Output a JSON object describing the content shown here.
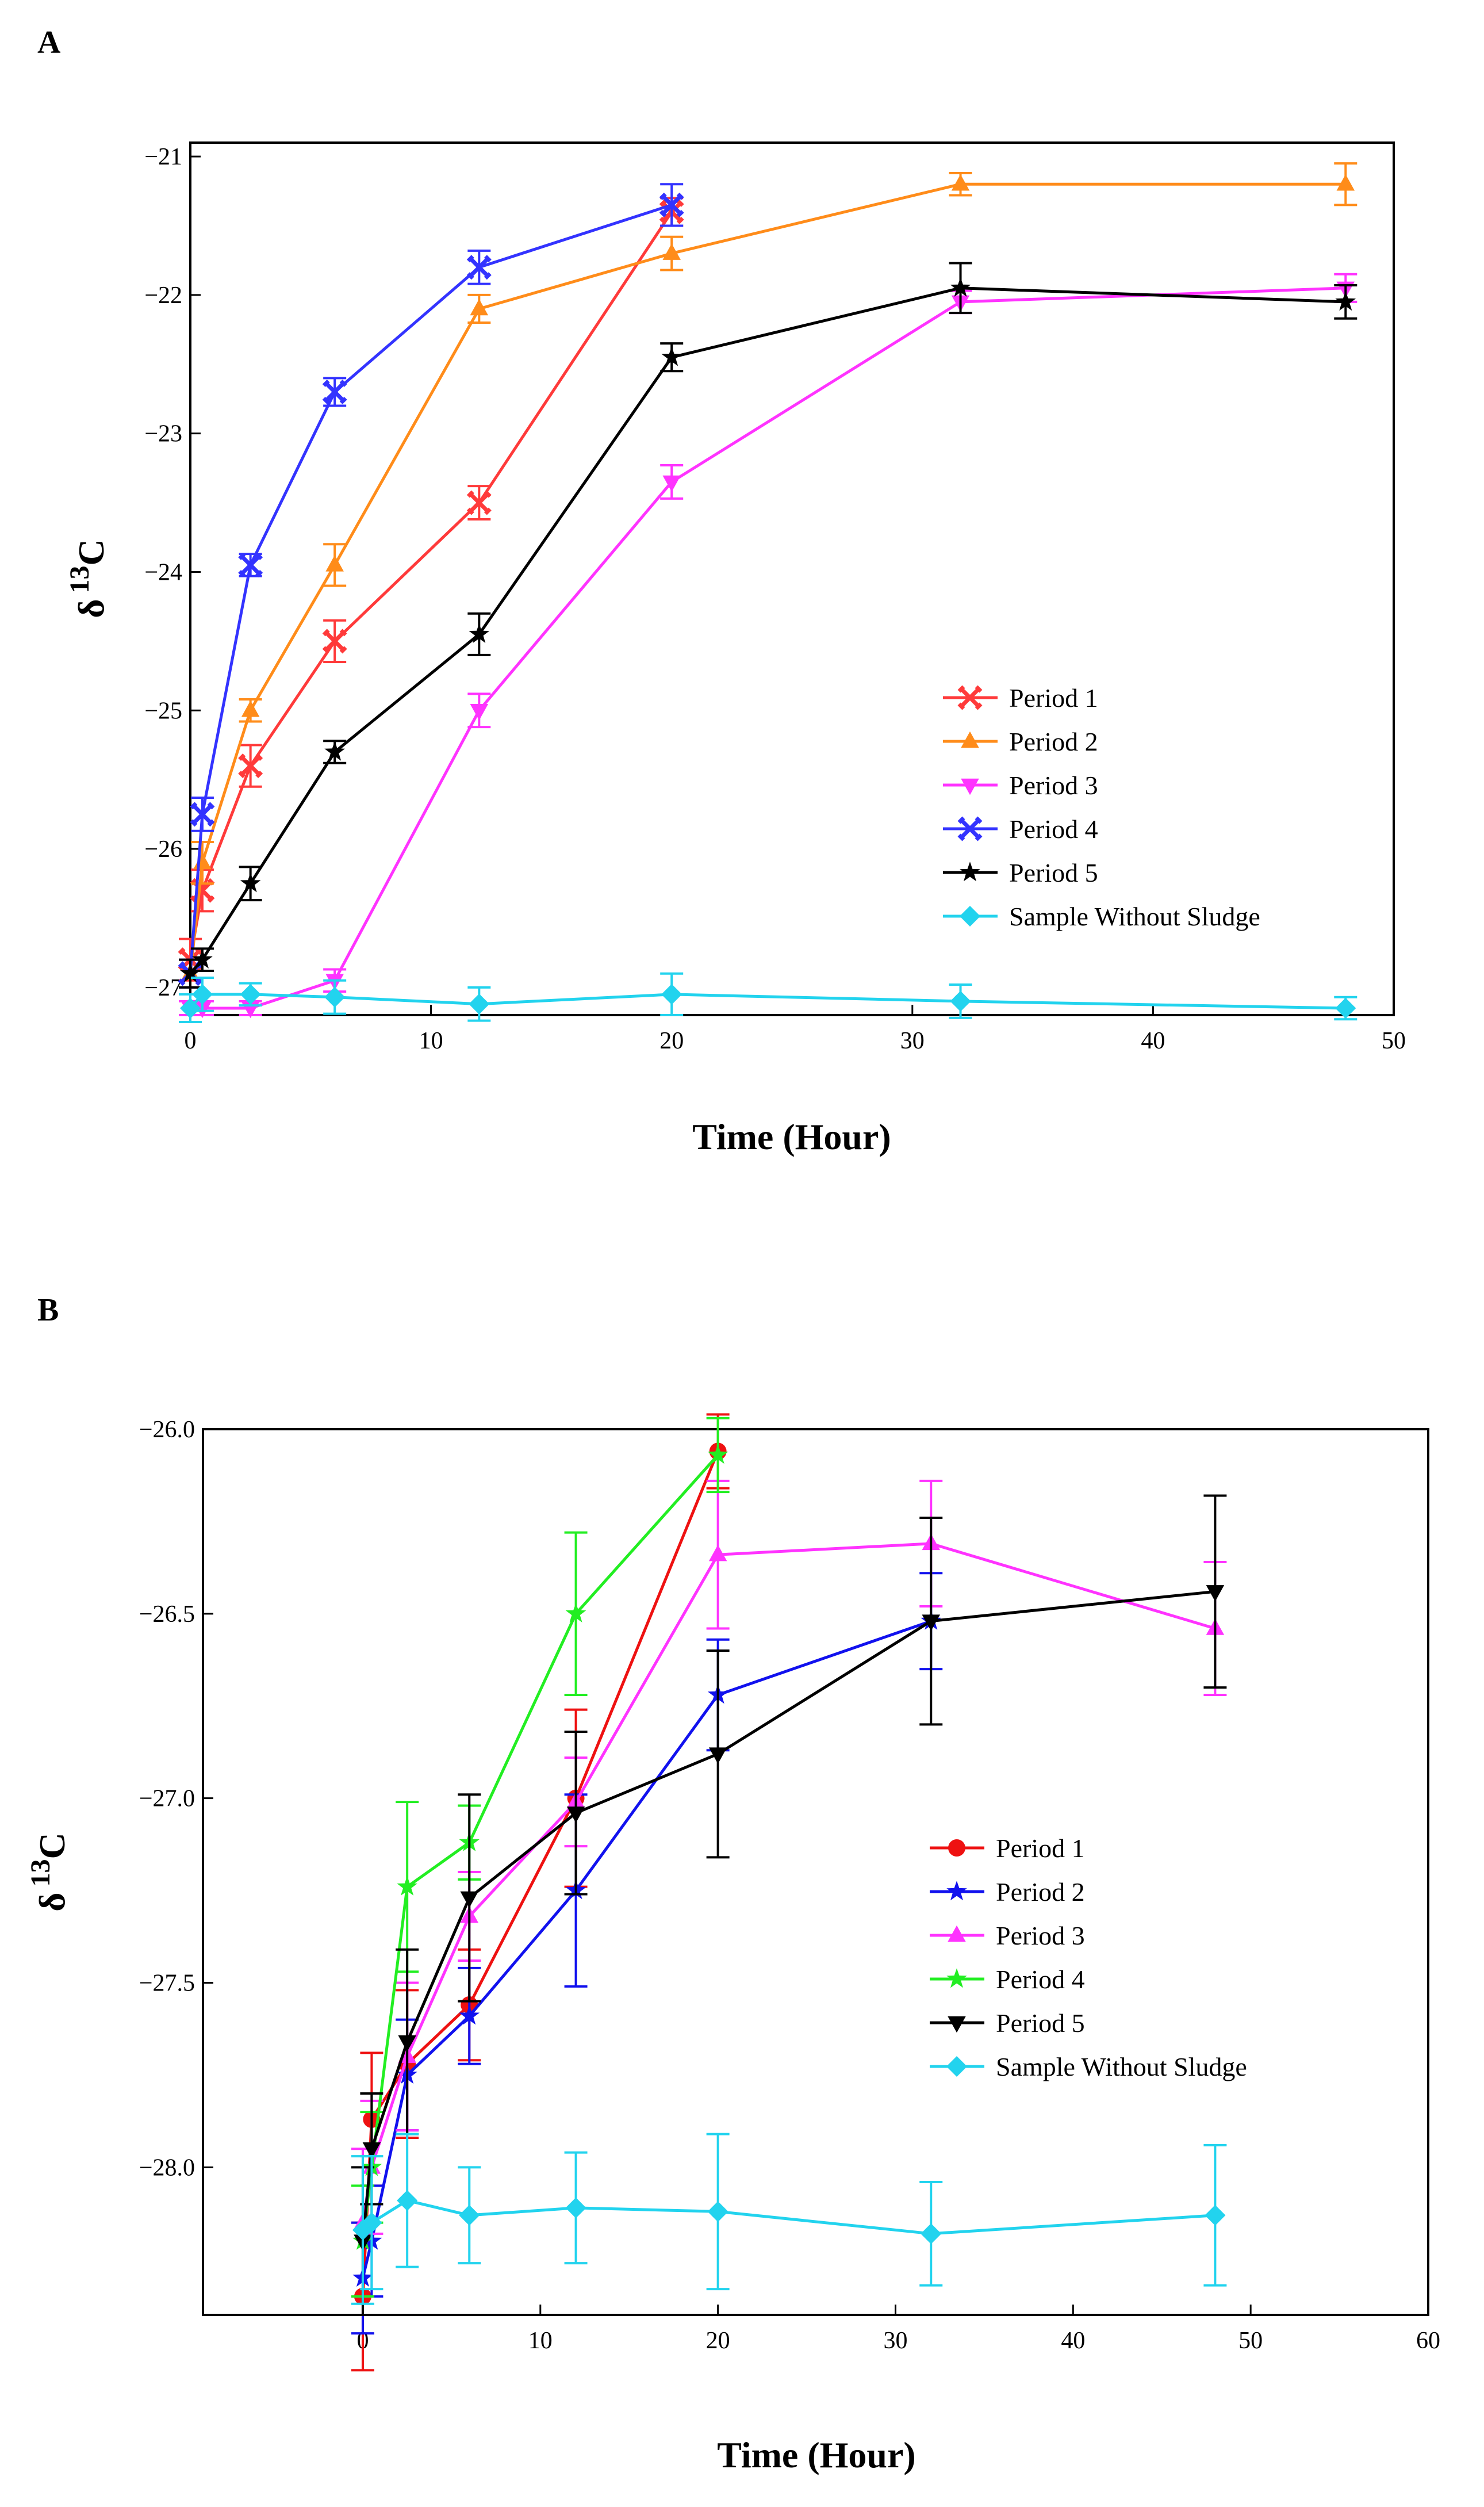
{
  "chart_data": [
    {
      "panel": "A",
      "type": "line",
      "xlabel": "Time (Hour)",
      "ylabel_main": "δ",
      "ylabel_sup": "13",
      "ylabel_sub": "C",
      "xlim": [
        0,
        50
      ],
      "ylim": [
        -27.2,
        -20.9
      ],
      "xticks": [
        0,
        10,
        20,
        30,
        40,
        50
      ],
      "yticks": [
        -27,
        -26,
        -25,
        -24,
        -23,
        -22,
        -21
      ],
      "legend_position": "lower-right",
      "series": [
        {
          "name": "Period 1",
          "color": "#ff3a3a",
          "marker": "x",
          "x": [
            0,
            0.5,
            2.5,
            6,
            12,
            20
          ],
          "y": [
            -26.8,
            -26.3,
            -25.4,
            -24.5,
            -23.5,
            -21.4
          ],
          "err": [
            0.15,
            0.15,
            0.15,
            0.15,
            0.12,
            0.1
          ]
        },
        {
          "name": "Period 2",
          "color": "#ff8c1a",
          "marker": "triangle-up",
          "x": [
            0,
            0.5,
            2.5,
            6,
            12,
            20,
            32,
            48
          ],
          "y": [
            -26.9,
            -26.1,
            -25.0,
            -23.95,
            -22.1,
            -21.7,
            -21.2,
            -21.2
          ],
          "err": [
            0.1,
            0.15,
            0.08,
            0.15,
            0.1,
            0.12,
            0.08,
            0.15
          ]
        },
        {
          "name": "Period 3",
          "color": "#ff33ff",
          "marker": "triangle-down",
          "x": [
            0,
            0.5,
            2.5,
            6,
            12,
            20,
            32,
            48
          ],
          "y": [
            -27.15,
            -27.15,
            -27.15,
            -26.95,
            -25.0,
            -23.35,
            -22.05,
            -21.95
          ],
          "err": [
            0.05,
            0.05,
            0.05,
            0.08,
            0.12,
            0.12,
            0.08,
            0.1
          ]
        },
        {
          "name": "Period 4",
          "color": "#3333ff",
          "marker": "x",
          "x": [
            0,
            0.5,
            2.5,
            6,
            12,
            20
          ],
          "y": [
            -26.9,
            -25.75,
            -23.95,
            -22.7,
            -21.8,
            -21.35
          ],
          "err": [
            0.1,
            0.12,
            0.08,
            0.1,
            0.12,
            0.15
          ]
        },
        {
          "name": "Period 5",
          "color": "#000000",
          "marker": "star",
          "x": [
            0,
            0.5,
            2.5,
            6,
            12,
            20,
            32,
            48
          ],
          "y": [
            -26.9,
            -26.8,
            -26.25,
            -25.3,
            -24.45,
            -22.45,
            -21.95,
            -22.05
          ],
          "err": [
            0.1,
            0.08,
            0.12,
            0.08,
            0.15,
            0.1,
            0.18,
            0.12
          ]
        },
        {
          "name": "Sample Without Sludge",
          "color": "#22d3ee",
          "marker": "diamond",
          "x": [
            0,
            0.5,
            2.5,
            6,
            12,
            20,
            32,
            48
          ],
          "y": [
            -27.15,
            -27.05,
            -27.05,
            -27.07,
            -27.12,
            -27.05,
            -27.1,
            -27.15
          ],
          "err": [
            0.1,
            0.12,
            0.08,
            0.12,
            0.12,
            0.15,
            0.12,
            0.08
          ]
        }
      ]
    },
    {
      "panel": "B",
      "type": "line",
      "xlabel": "Time (Hour)",
      "ylabel_main": "δ",
      "ylabel_sup": "13",
      "ylabel_sub": "C",
      "xlim": [
        -9,
        60
      ],
      "ylim": [
        -28.4,
        -26.0
      ],
      "xticks": [
        0,
        10,
        20,
        30,
        40,
        50,
        60
      ],
      "yticks": [
        "-26.0",
        "-26.5",
        "-27.0",
        "-27.5",
        "-28.0"
      ],
      "legend_position": "lower-right",
      "series": [
        {
          "name": "Period 1",
          "color": "#ee1111",
          "marker": "circle",
          "x": [
            0,
            0.5,
            2.5,
            6,
            12,
            20
          ],
          "y": [
            -28.35,
            -27.87,
            -27.72,
            -27.56,
            -27.0,
            -26.06
          ],
          "err": [
            0.2,
            0.18,
            0.2,
            0.15,
            0.24,
            0.1
          ]
        },
        {
          "name": "Period 2",
          "color": "#1111ee",
          "marker": "star",
          "x": [
            0,
            0.5,
            2.5,
            6,
            12,
            20,
            32
          ],
          "y": [
            -28.3,
            -28.2,
            -27.75,
            -27.59,
            -27.25,
            -26.72,
            -26.52
          ],
          "err": [
            0.15,
            0.15,
            0.15,
            0.13,
            0.26,
            0.15,
            0.13
          ]
        },
        {
          "name": "Period 3",
          "color": "#ff33ff",
          "marker": "triangle-up",
          "x": [
            0,
            0.5,
            2.5,
            6,
            12,
            20,
            32,
            48
          ],
          "y": [
            -28.15,
            -28.0,
            -27.7,
            -27.32,
            -27.01,
            -26.34,
            -26.31,
            -26.54
          ],
          "err": [
            0.2,
            0.18,
            0.2,
            0.12,
            0.12,
            0.2,
            0.17,
            0.18
          ]
        },
        {
          "name": "Period 4",
          "color": "#22ee22",
          "marker": "star",
          "x": [
            0,
            0.5,
            2.5,
            6,
            12,
            20
          ],
          "y": [
            -28.2,
            -28.0,
            -27.24,
            -27.12,
            -26.5,
            -26.07
          ],
          "err": [
            0.15,
            0.15,
            0.23,
            0.1,
            0.22,
            0.1
          ]
        },
        {
          "name": "Period 5",
          "color": "#000000",
          "marker": "triangle-down",
          "x": [
            0,
            0.5,
            2.5,
            6,
            12,
            20,
            32,
            48
          ],
          "y": [
            -28.2,
            -27.95,
            -27.66,
            -27.27,
            -27.04,
            -26.88,
            -26.52,
            -26.44
          ],
          "err": [
            0.2,
            0.15,
            0.25,
            0.28,
            0.22,
            0.28,
            0.28,
            0.26
          ]
        },
        {
          "name": "Sample Without Sludge",
          "color": "#22d3ee",
          "marker": "diamond",
          "x": [
            0,
            0.5,
            2.5,
            6,
            12,
            20,
            32,
            48
          ],
          "y": [
            -28.17,
            -28.15,
            -28.09,
            -28.13,
            -28.11,
            -28.12,
            -28.18,
            -28.13
          ],
          "err": [
            0.2,
            0.18,
            0.18,
            0.13,
            0.15,
            0.21,
            0.14,
            0.19
          ]
        }
      ]
    }
  ]
}
